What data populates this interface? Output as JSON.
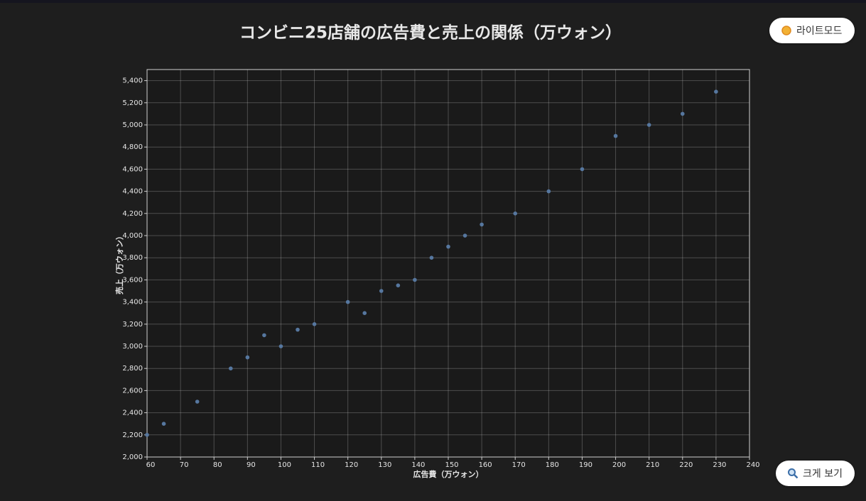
{
  "chart_data": {
    "type": "scatter",
    "title": "コンビニ25店舗の広告費と売上の関係（万ウォン）",
    "x_label": "広告費（万ウォン）",
    "y_label": "売上（万ウォン）",
    "x": [
      60,
      65,
      75,
      85,
      90,
      95,
      100,
      105,
      110,
      120,
      125,
      130,
      135,
      140,
      145,
      150,
      155,
      160,
      170,
      180,
      190,
      200,
      210,
      220,
      230
    ],
    "values": [
      2200,
      2300,
      2500,
      2800,
      2900,
      3100,
      3000,
      3150,
      3200,
      3400,
      3300,
      3500,
      3550,
      3600,
      3800,
      3900,
      4000,
      4100,
      4200,
      4400,
      4600,
      4900,
      5000,
      5100,
      5300
    ],
    "color": "#56779f",
    "xlim": [
      60,
      240
    ],
    "xticks": [
      60,
      70,
      80,
      90,
      100,
      110,
      120,
      130,
      140,
      150,
      160,
      170,
      180,
      190,
      200,
      210,
      220,
      230,
      240
    ],
    "ylim": [
      2000,
      5500
    ],
    "yticks": [
      {
        "value": 2000,
        "label": "2,000"
      },
      {
        "value": 2200,
        "label": "2,200"
      },
      {
        "value": 2400,
        "label": "2,400"
      },
      {
        "value": 2600,
        "label": "2,600"
      },
      {
        "value": 2800,
        "label": "2,800"
      },
      {
        "value": 3000,
        "label": "3,000"
      },
      {
        "value": 3200,
        "label": "3,200"
      },
      {
        "value": 3400,
        "label": "3,400"
      },
      {
        "value": 3600,
        "label": "3,600"
      },
      {
        "value": 3800,
        "label": "3,800"
      },
      {
        "value": 4000,
        "label": "4,000"
      },
      {
        "value": 4200,
        "label": "4,200"
      },
      {
        "value": 4400,
        "label": "4,400"
      },
      {
        "value": 4600,
        "label": "4,600"
      },
      {
        "value": 4800,
        "label": "4,800"
      },
      {
        "value": 5000,
        "label": "5,000"
      },
      {
        "value": 5200,
        "label": "5,200"
      },
      {
        "value": 5400,
        "label": "5,400"
      }
    ],
    "grid": true
  },
  "ui": {
    "theme_button": "라이트모드",
    "zoom_button": "크게 보기"
  }
}
